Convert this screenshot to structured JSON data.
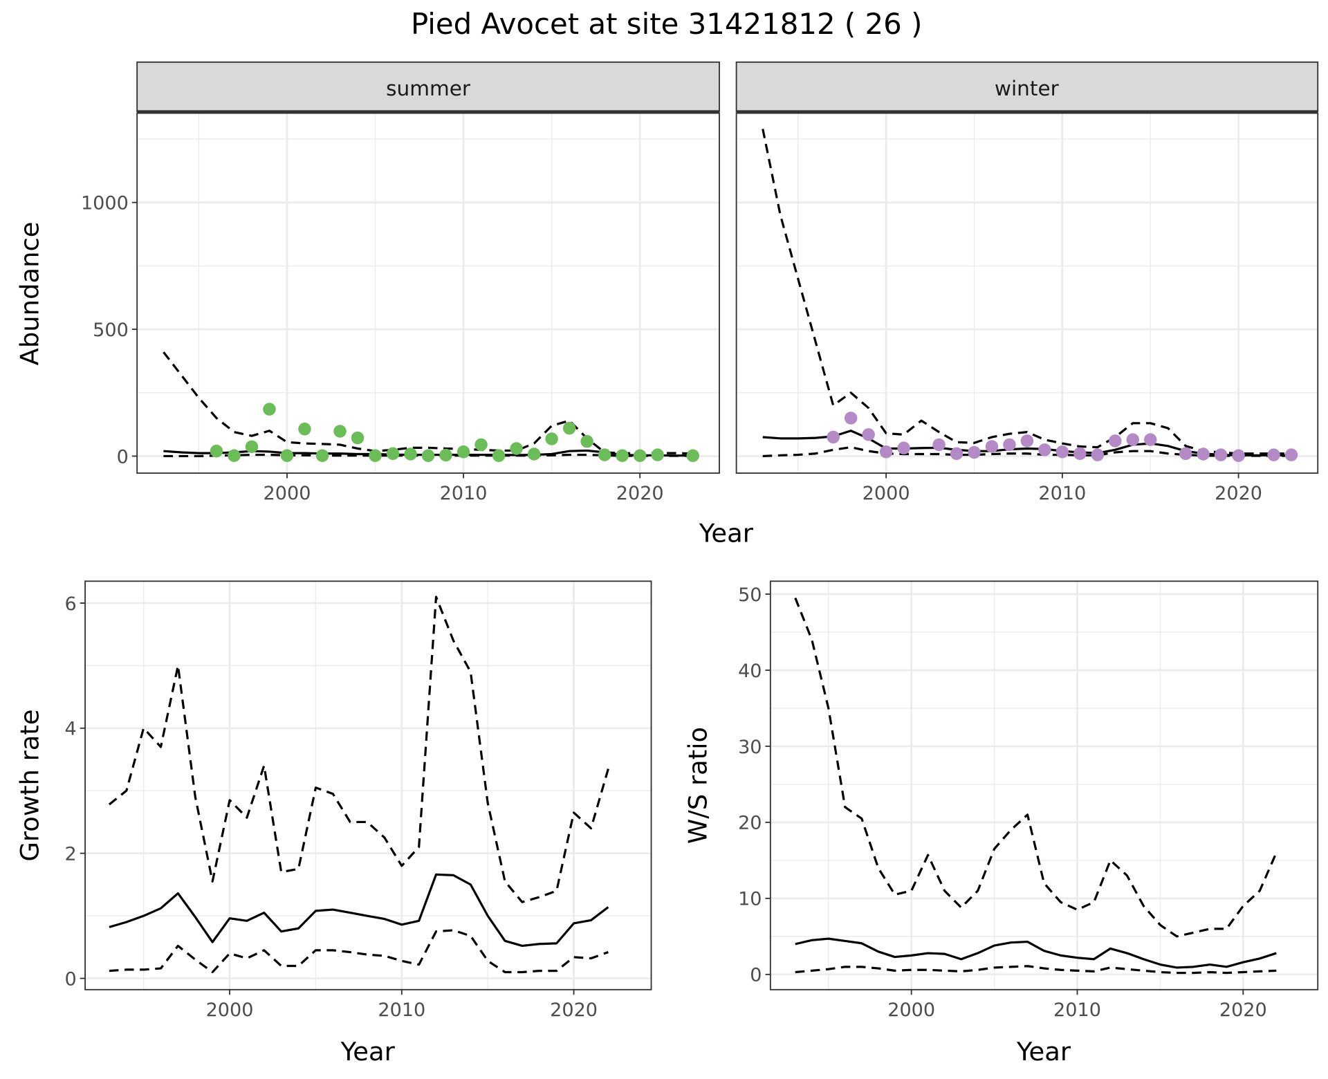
{
  "title": "Pied Avocet at site 31421812 ( 26 )",
  "colors": {
    "summer": "#6bbd58",
    "winter": "#b38ac6",
    "line": "#000000",
    "grid": "#ebebeb",
    "strip": "#d9d9d9"
  },
  "chart_data": [
    {
      "type": "scatter+line",
      "facet": "summer",
      "xlabel": "Year",
      "ylabel": "Abundance",
      "xlim": [
        1991.5,
        2024.5
      ],
      "ylim": [
        -67,
        1352
      ],
      "xticks": [
        2000,
        2010,
        2020
      ],
      "xtick_labels": [
        "2000",
        "2010",
        "2020"
      ],
      "yticks": [
        0,
        500,
        1000
      ],
      "ytick_labels": [
        "0",
        "500",
        "1000"
      ],
      "grid": true,
      "points": {
        "x": [
          1996,
          1997,
          1998,
          1999,
          2000,
          2001,
          2002,
          2003,
          2004,
          2005,
          2006,
          2007,
          2008,
          2009,
          2010,
          2011,
          2012,
          2013,
          2014,
          2015,
          2016,
          2017,
          2018,
          2019,
          2020,
          2021,
          2023
        ],
        "y": [
          20,
          2,
          37,
          185,
          2,
          107,
          2,
          98,
          72,
          2,
          10,
          8,
          2,
          4,
          17,
          45,
          2,
          30,
          8,
          68,
          110,
          58,
          5,
          2,
          2,
          5,
          2
        ]
      },
      "line_x_start": 1993,
      "series": [
        {
          "style": "solid",
          "values": [
            20,
            15,
            12,
            12,
            15,
            20,
            18,
            12,
            12,
            10,
            10,
            8,
            8,
            6,
            5,
            5,
            5,
            5,
            5,
            5,
            4,
            5,
            8,
            20,
            22,
            15,
            5,
            3,
            3,
            2,
            2
          ]
        },
        {
          "style": "dashed",
          "values": [
            410,
            320,
            230,
            150,
            95,
            80,
            100,
            55,
            50,
            48,
            45,
            30,
            20,
            25,
            33,
            33,
            30,
            28,
            25,
            22,
            22,
            50,
            120,
            140,
            70,
            15,
            12,
            10,
            12,
            12,
            10
          ]
        },
        {
          "style": "dashed",
          "values": [
            0,
            0,
            0,
            2,
            3,
            5,
            5,
            3,
            3,
            2,
            2,
            2,
            2,
            2,
            2,
            2,
            2,
            2,
            2,
            2,
            2,
            2,
            3,
            5,
            5,
            3,
            1,
            1,
            1,
            1,
            1
          ]
        }
      ]
    },
    {
      "type": "scatter+line",
      "facet": "winter",
      "xlabel": "Year",
      "ylabel": "Abundance",
      "xlim": [
        1991.5,
        2024.5
      ],
      "ylim": [
        -67,
        1352
      ],
      "xticks": [
        2000,
        2010,
        2020
      ],
      "xtick_labels": [
        "2000",
        "2010",
        "2020"
      ],
      "yticks": [
        0,
        500,
        1000
      ],
      "grid": true,
      "points": {
        "x": [
          1997,
          1998,
          1999,
          2000,
          2001,
          2003,
          2004,
          2005,
          2006,
          2007,
          2008,
          2009,
          2010,
          2011,
          2012,
          2013,
          2014,
          2015,
          2017,
          2018,
          2019,
          2020,
          2022,
          2023
        ],
        "y": [
          75,
          150,
          85,
          17,
          32,
          45,
          10,
          15,
          38,
          45,
          60,
          25,
          17,
          10,
          5,
          60,
          65,
          65,
          10,
          8,
          5,
          2,
          5,
          5
        ]
      },
      "line_x_start": 1993,
      "series": [
        {
          "style": "solid",
          "values": [
            75,
            70,
            70,
            72,
            78,
            100,
            70,
            30,
            30,
            32,
            33,
            25,
            20,
            20,
            27,
            30,
            28,
            20,
            15,
            12,
            25,
            45,
            50,
            40,
            20,
            10,
            5,
            3,
            3,
            3,
            3
          ]
        },
        {
          "style": "dashed",
          "values": [
            1290,
            950,
            700,
            450,
            200,
            250,
            190,
            90,
            85,
            140,
            95,
            55,
            52,
            75,
            88,
            95,
            65,
            50,
            38,
            35,
            75,
            130,
            130,
            110,
            40,
            20,
            15,
            10,
            10,
            10,
            10
          ]
        },
        {
          "style": "dashed",
          "values": [
            0,
            3,
            5,
            10,
            25,
            35,
            20,
            10,
            8,
            8,
            8,
            5,
            5,
            8,
            10,
            10,
            5,
            5,
            3,
            3,
            15,
            20,
            20,
            10,
            5,
            2,
            1,
            1,
            1,
            1,
            1
          ]
        }
      ]
    },
    {
      "type": "line",
      "xlabel": "Year",
      "ylabel": "Growth rate",
      "xlim": [
        1991.6,
        2024.5
      ],
      "ylim": [
        -0.18,
        6.35
      ],
      "xticks": [
        2000,
        2010,
        2020
      ],
      "xtick_labels": [
        "2000",
        "2010",
        "2020"
      ],
      "yticks": [
        0,
        2,
        4,
        6
      ],
      "ytick_labels": [
        "0",
        "2",
        "4",
        "6"
      ],
      "grid": true,
      "line_x_start": 1993,
      "series": [
        {
          "style": "solid",
          "values": [
            0.82,
            0.9,
            1.0,
            1.12,
            1.36,
            0.98,
            0.58,
            0.96,
            0.92,
            1.05,
            0.75,
            0.8,
            1.08,
            1.1,
            1.05,
            1.0,
            0.95,
            0.86,
            0.92,
            1.66,
            1.65,
            1.5,
            1.0,
            0.6,
            0.52,
            0.55,
            0.56,
            0.88,
            0.93,
            1.14
          ]
        },
        {
          "style": "dashed",
          "values": [
            2.78,
            3.0,
            4.0,
            3.7,
            5.0,
            2.9,
            1.55,
            2.85,
            2.57,
            3.4,
            1.7,
            1.75,
            3.05,
            2.95,
            2.5,
            2.5,
            2.25,
            1.8,
            2.1,
            6.1,
            5.4,
            4.9,
            2.8,
            1.55,
            1.22,
            1.3,
            1.4,
            2.65,
            2.4,
            3.35
          ]
        },
        {
          "style": "dashed",
          "values": [
            0.12,
            0.14,
            0.14,
            0.16,
            0.52,
            0.3,
            0.1,
            0.4,
            0.32,
            0.45,
            0.2,
            0.2,
            0.45,
            0.45,
            0.42,
            0.38,
            0.36,
            0.28,
            0.22,
            0.75,
            0.77,
            0.68,
            0.28,
            0.1,
            0.1,
            0.12,
            0.12,
            0.34,
            0.32,
            0.42
          ]
        }
      ]
    },
    {
      "type": "line",
      "xlabel": "Year",
      "ylabel": "W/S ratio",
      "xlim": [
        1991.5,
        2024.5
      ],
      "ylim": [
        -2,
        51.7
      ],
      "xticks": [
        2000,
        2010,
        2020
      ],
      "xtick_labels": [
        "2000",
        "2010",
        "2020"
      ],
      "yticks": [
        0,
        10,
        20,
        30,
        40,
        50
      ],
      "ytick_labels": [
        "0",
        "10",
        "20",
        "30",
        "40",
        "50"
      ],
      "grid": true,
      "line_x_start": 1993,
      "series": [
        {
          "style": "solid",
          "values": [
            4.0,
            4.5,
            4.7,
            4.4,
            4.1,
            3.0,
            2.3,
            2.5,
            2.8,
            2.7,
            2.0,
            2.8,
            3.8,
            4.2,
            4.3,
            3.1,
            2.5,
            2.2,
            2.0,
            3.4,
            2.8,
            2.0,
            1.3,
            0.9,
            1.0,
            1.3,
            1.0,
            1.6,
            2.1,
            2.8
          ]
        },
        {
          "style": "dashed",
          "values": [
            49.5,
            44,
            35,
            22,
            20.5,
            14,
            10.5,
            11,
            15.7,
            11,
            8.8,
            11,
            16.5,
            19,
            21,
            12,
            9.5,
            8.5,
            9.5,
            15,
            13,
            9,
            6.5,
            5,
            5.5,
            6,
            6,
            9,
            11,
            16
          ]
        },
        {
          "style": "dashed",
          "values": [
            0.3,
            0.5,
            0.7,
            1.0,
            1.0,
            0.8,
            0.5,
            0.6,
            0.6,
            0.5,
            0.4,
            0.6,
            0.9,
            1.0,
            1.1,
            0.8,
            0.6,
            0.5,
            0.4,
            0.9,
            0.7,
            0.5,
            0.3,
            0.2,
            0.2,
            0.3,
            0.2,
            0.3,
            0.4,
            0.5
          ]
        }
      ]
    }
  ]
}
